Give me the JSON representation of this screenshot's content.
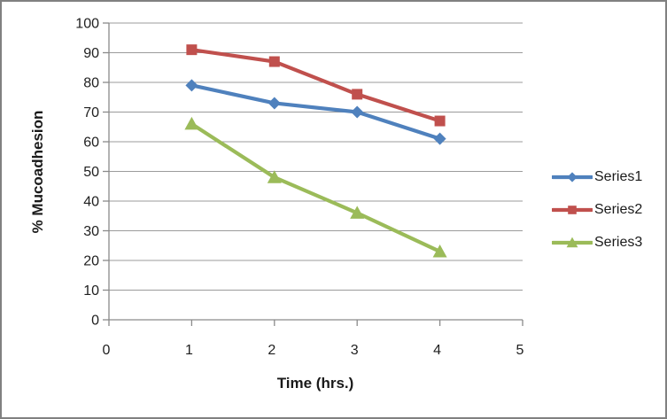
{
  "chart_data": {
    "type": "line",
    "xlabel": "Time (hrs.)",
    "ylabel": "% Mucoadhesion",
    "x": [
      1,
      2,
      3,
      4
    ],
    "series": [
      {
        "name": "Series1",
        "color": "#4F81BD",
        "marker": "diamond",
        "values": [
          79,
          73,
          70,
          61
        ]
      },
      {
        "name": "Series2",
        "color": "#C0504D",
        "marker": "square",
        "values": [
          91,
          87,
          76,
          67
        ]
      },
      {
        "name": "Series3",
        "color": "#9BBB59",
        "marker": "triangle",
        "values": [
          66,
          48,
          36,
          23
        ]
      }
    ],
    "xlim": [
      0,
      5
    ],
    "ylim": [
      0,
      100
    ],
    "x_ticks": [
      0,
      1,
      2,
      3,
      4,
      5
    ],
    "y_ticks": [
      0,
      10,
      20,
      30,
      40,
      50,
      60,
      70,
      80,
      90,
      100
    ],
    "grid": true,
    "legend_position": "right"
  },
  "style": {
    "background": "#FFFFFF",
    "border_color": "#808080",
    "gridline_color": "#9B9B9B",
    "axis_color": "#8A8A8A",
    "text_color": "#1F1F1F"
  }
}
